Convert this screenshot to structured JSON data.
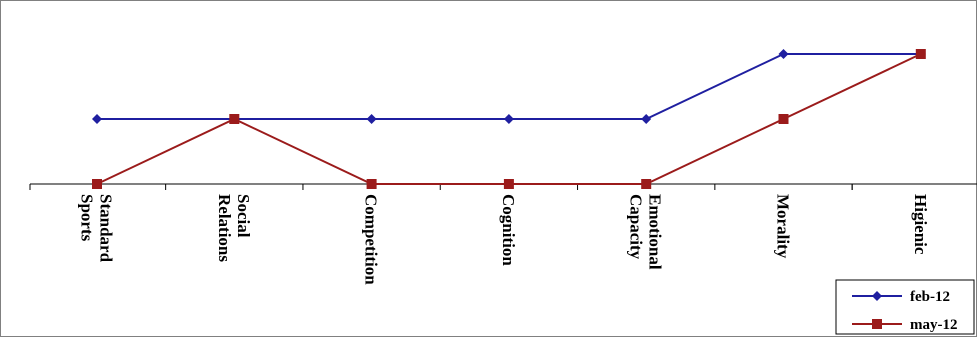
{
  "chart_data": {
    "type": "line",
    "title": "",
    "xlabel": "",
    "ylabel": "",
    "categories": [
      "Standard Sports",
      "Social Relations",
      "Competition",
      "Cognition",
      "Emotional Capacity",
      "Morality",
      "Higienic"
    ],
    "category_lines": [
      [
        "Standard",
        "Sports"
      ],
      [
        "Social",
        "Relations"
      ],
      [
        "Competition"
      ],
      [
        "Cognition"
      ],
      [
        "Emotional",
        "Capacity"
      ],
      [
        "Morality"
      ],
      [
        "Higienic"
      ]
    ],
    "ylim": [
      0,
      2
    ],
    "grid": false,
    "legend_position": "bottom-right",
    "series": [
      {
        "name": "feb-12",
        "color": "#1f1fa0",
        "marker": "diamond",
        "values": [
          1,
          1,
          1,
          1,
          1,
          2,
          2
        ]
      },
      {
        "name": "may-12",
        "color": "#9b1b1b",
        "marker": "square",
        "values": [
          0,
          1,
          0,
          0,
          0,
          1,
          2
        ]
      }
    ]
  }
}
